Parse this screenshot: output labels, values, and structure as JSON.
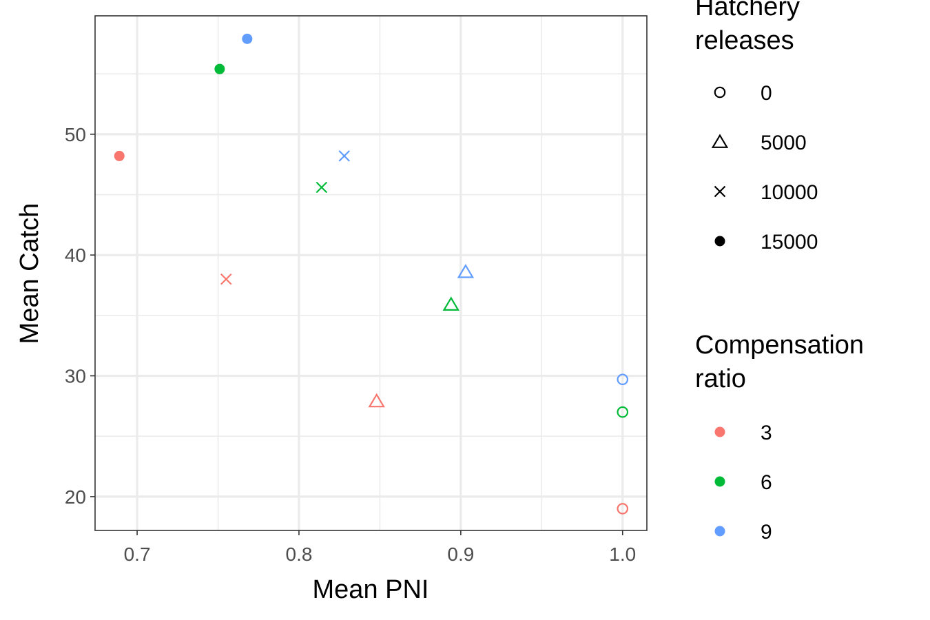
{
  "chart_data": {
    "type": "scatter",
    "xlabel": "Mean PNI",
    "ylabel": "Mean Catch",
    "xlim": [
      0.674,
      1.015
    ],
    "ylim": [
      17.2,
      59.8
    ],
    "x_ticks": [
      0.7,
      0.8,
      0.9,
      1.0
    ],
    "x_tick_labels": [
      "0.7",
      "0.8",
      "0.9",
      "1.0"
    ],
    "y_ticks": [
      20,
      30,
      40,
      50
    ],
    "y_tick_labels": [
      "20",
      "30",
      "40",
      "50"
    ],
    "grid": true,
    "legend_position": "right",
    "legends": [
      {
        "title": [
          "Hatchery",
          "releases"
        ],
        "kind": "shape",
        "entries": [
          {
            "label": "0",
            "shape": "circle-open"
          },
          {
            "label": "5000",
            "shape": "triangle-open"
          },
          {
            "label": "10000",
            "shape": "x"
          },
          {
            "label": "15000",
            "shape": "circle-filled"
          }
        ]
      },
      {
        "title": [
          "Compensation",
          "ratio"
        ],
        "kind": "color",
        "entries": [
          {
            "label": "3",
            "color": "#F8766D"
          },
          {
            "label": "6",
            "color": "#00BA38"
          },
          {
            "label": "9",
            "color": "#619CFF"
          }
        ]
      }
    ],
    "points": [
      {
        "x": 1.0,
        "y": 19.0,
        "releases": "0",
        "ratio": "3"
      },
      {
        "x": 1.0,
        "y": 27.0,
        "releases": "0",
        "ratio": "6"
      },
      {
        "x": 1.0,
        "y": 29.7,
        "releases": "0",
        "ratio": "9"
      },
      {
        "x": 0.848,
        "y": 27.9,
        "releases": "5000",
        "ratio": "3"
      },
      {
        "x": 0.894,
        "y": 35.9,
        "releases": "5000",
        "ratio": "6"
      },
      {
        "x": 0.903,
        "y": 38.6,
        "releases": "5000",
        "ratio": "9"
      },
      {
        "x": 0.755,
        "y": 38.0,
        "releases": "10000",
        "ratio": "3"
      },
      {
        "x": 0.814,
        "y": 45.6,
        "releases": "10000",
        "ratio": "6"
      },
      {
        "x": 0.828,
        "y": 48.2,
        "releases": "10000",
        "ratio": "9"
      },
      {
        "x": 0.689,
        "y": 48.2,
        "releases": "15000",
        "ratio": "3"
      },
      {
        "x": 0.751,
        "y": 55.4,
        "releases": "15000",
        "ratio": "6"
      },
      {
        "x": 0.768,
        "y": 57.9,
        "releases": "15000",
        "ratio": "9"
      }
    ]
  }
}
